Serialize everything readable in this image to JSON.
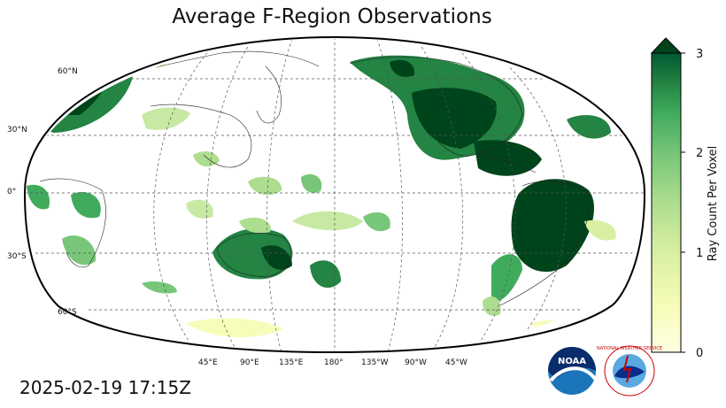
{
  "title": "Average F-Region Observations",
  "timestamp": "2025-02-19 17:15Z",
  "map": {
    "lat_labels": [
      "60°N",
      "30°N",
      "0°",
      "30°S",
      "60°S"
    ],
    "lon_labels": [
      "45°E",
      "90°E",
      "135°E",
      "180°",
      "135°W",
      "90°W",
      "45°W"
    ],
    "colors": {
      "high": "#00441b",
      "mid": "#41ab5d",
      "low": "#c7e9a3",
      "min": "#ffffcc"
    }
  },
  "colorbar": {
    "label": "Ray Count Per Voxel",
    "ticks": [
      "0",
      "1",
      "2",
      "3"
    ],
    "range": [
      0,
      3
    ],
    "extend": "max"
  },
  "logos": {
    "noaa": "NOAA",
    "nws": "NATIONAL WEATHER SERVICE"
  }
}
